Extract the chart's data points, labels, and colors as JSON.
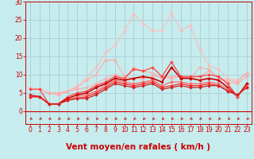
{
  "xlabel": "Vent moyen/en rafales ( km/h )",
  "xlim": [
    -0.5,
    23.5
  ],
  "ylim": [
    -3.5,
    30
  ],
  "yticks": [
    0,
    5,
    10,
    15,
    20,
    25,
    30
  ],
  "xticks": [
    0,
    1,
    2,
    3,
    4,
    5,
    6,
    7,
    8,
    9,
    10,
    11,
    12,
    13,
    14,
    15,
    16,
    17,
    18,
    19,
    20,
    21,
    22,
    23
  ],
  "bg_color": "#c6ecee",
  "grid_color": "#aacfd4",
  "series": [
    {
      "y": [
        6.5,
        6.0,
        5.0,
        4.5,
        5.5,
        7.0,
        9.0,
        12.0,
        16.0,
        18.0,
        22.0,
        26.5,
        24.0,
        22.0,
        22.0,
        27.0,
        22.0,
        23.5,
        17.0,
        12.5,
        11.5,
        9.0,
        8.5,
        10.5
      ],
      "color": "#ffbbbb",
      "lw": 0.8,
      "marker": "D",
      "ms": 2.0
    },
    {
      "y": [
        6.0,
        6.0,
        5.0,
        5.0,
        5.5,
        6.0,
        6.5,
        7.5,
        9.0,
        10.0,
        9.0,
        12.0,
        11.0,
        10.5,
        9.0,
        9.5,
        9.5,
        9.0,
        9.5,
        11.0,
        9.0,
        8.5,
        8.0,
        10.5
      ],
      "color": "#ffaaaa",
      "lw": 0.8,
      "marker": "D",
      "ms": 2.0
    },
    {
      "y": [
        6.0,
        6.0,
        5.0,
        4.5,
        5.5,
        6.5,
        8.5,
        10.0,
        14.0,
        14.0,
        9.5,
        9.0,
        9.0,
        9.5,
        9.5,
        9.0,
        9.5,
        9.0,
        12.0,
        11.5,
        9.0,
        8.0,
        7.5,
        9.5
      ],
      "color": "#ffaaaa",
      "lw": 0.8,
      "marker": "D",
      "ms": 2.0
    },
    {
      "y": [
        6.0,
        6.0,
        2.0,
        2.0,
        4.0,
        5.0,
        5.5,
        7.0,
        8.0,
        9.5,
        9.0,
        11.5,
        11.0,
        12.0,
        9.5,
        13.5,
        9.5,
        9.5,
        9.5,
        10.0,
        9.5,
        7.5,
        4.0,
        7.5
      ],
      "color": "#ff4444",
      "lw": 0.9,
      "marker": "D",
      "ms": 2.0
    },
    {
      "y": [
        4.0,
        4.0,
        2.0,
        2.0,
        3.5,
        4.5,
        5.0,
        6.5,
        7.5,
        9.0,
        8.5,
        9.0,
        9.5,
        9.0,
        8.0,
        12.0,
        9.0,
        9.0,
        8.5,
        9.0,
        8.5,
        6.5,
        4.0,
        7.5
      ],
      "color": "#cc0000",
      "lw": 1.2,
      "marker": "D",
      "ms": 2.0
    },
    {
      "y": [
        4.0,
        4.0,
        2.0,
        2.0,
        3.0,
        4.0,
        4.5,
        5.5,
        7.0,
        8.5,
        8.0,
        7.5,
        8.0,
        8.5,
        7.0,
        8.0,
        8.0,
        7.5,
        7.5,
        8.0,
        7.5,
        6.0,
        4.0,
        7.0
      ],
      "color": "#ff6666",
      "lw": 0.9,
      "marker": "D",
      "ms": 2.0
    },
    {
      "y": [
        4.0,
        4.0,
        2.0,
        2.0,
        3.0,
        3.5,
        4.0,
        5.0,
        6.5,
        8.0,
        7.5,
        7.0,
        7.5,
        8.0,
        6.5,
        7.0,
        7.5,
        7.0,
        7.0,
        7.5,
        7.0,
        5.5,
        4.5,
        6.5
      ],
      "color": "#ff2222",
      "lw": 0.9,
      "marker": "D",
      "ms": 2.0
    },
    {
      "y": [
        4.5,
        4.0,
        2.0,
        2.0,
        3.0,
        3.5,
        3.5,
        4.5,
        6.0,
        7.5,
        7.0,
        6.5,
        7.0,
        7.5,
        6.0,
        6.5,
        7.0,
        6.5,
        6.5,
        7.0,
        7.0,
        5.5,
        4.5,
        6.5
      ],
      "color": "#cc2222",
      "lw": 0.9,
      "marker": "D",
      "ms": 2.0
    }
  ],
  "tick_label_color": "#cc0000",
  "axis_label_color": "#cc0000",
  "tick_label_size": 5.5,
  "xlabel_size": 7.5
}
